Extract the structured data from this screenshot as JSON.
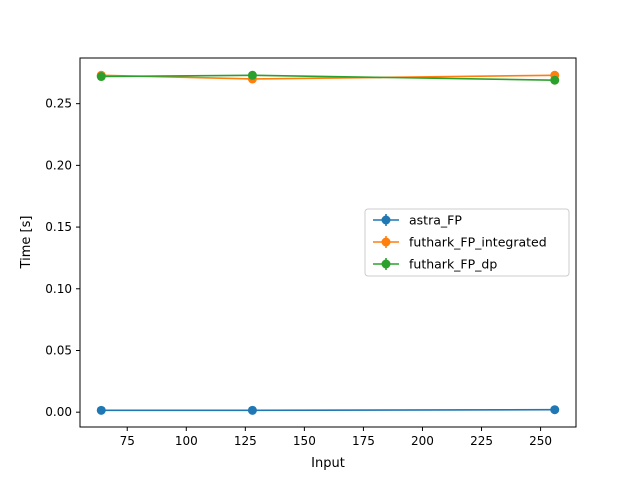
{
  "chart_data": {
    "type": "line",
    "title": "",
    "xlabel": "Input",
    "ylabel": "Time [s]",
    "xlim": [
      55,
      265
    ],
    "ylim": [
      -0.012,
      0.287
    ],
    "x_ticks": [
      75,
      100,
      125,
      150,
      175,
      200,
      225,
      250
    ],
    "x_tick_labels": [
      "75",
      "100",
      "125",
      "150",
      "175",
      "200",
      "225",
      "250"
    ],
    "y_ticks": [
      0.0,
      0.05,
      0.1,
      0.15,
      0.2,
      0.25
    ],
    "y_tick_labels": [
      "0.00",
      "0.05",
      "0.10",
      "0.15",
      "0.20",
      "0.25"
    ],
    "grid": false,
    "legend_position": "center-right",
    "x": [
      64,
      128,
      256
    ],
    "series": [
      {
        "name": "astra_FP",
        "color": "#1f77b4",
        "values": [
          0.0015,
          0.0015,
          0.002
        ]
      },
      {
        "name": "futhark_FP_integrated",
        "color": "#ff7f0e",
        "values": [
          0.273,
          0.27,
          0.273
        ]
      },
      {
        "name": "futhark_FP_dp",
        "color": "#2ca02c",
        "values": [
          0.272,
          0.273,
          0.269
        ]
      }
    ]
  }
}
